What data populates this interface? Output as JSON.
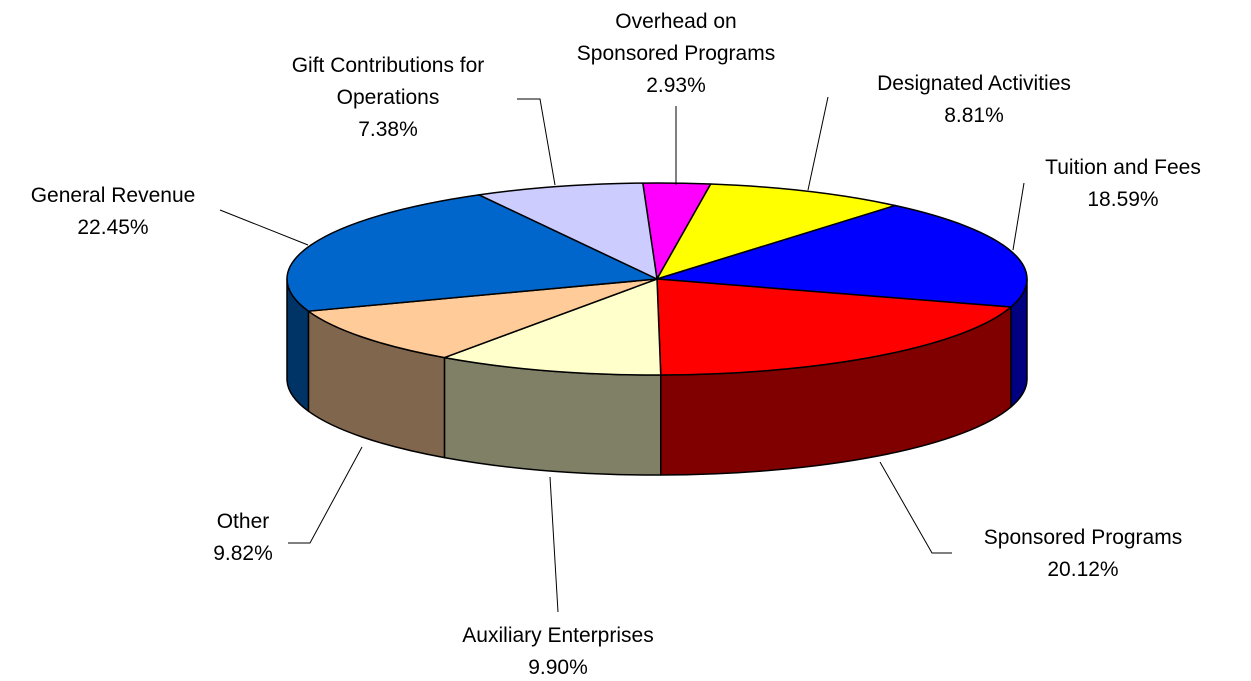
{
  "chart_data": {
    "type": "pie3d",
    "categories": [
      "Overhead on\nSponsored Programs",
      "Designated Activities",
      "Tuition and Fees",
      "Sponsored Programs",
      "Auxiliary Enterprises",
      "Other",
      "General Revenue",
      "Gift Contributions for\nOperations"
    ],
    "values": [
      2.93,
      8.81,
      18.59,
      20.12,
      9.9,
      9.82,
      22.45,
      7.38
    ],
    "value_labels": [
      "2.93%",
      "8.81%",
      "18.59%",
      "20.12%",
      "9.90%",
      "9.82%",
      "22.45%",
      "7.38%"
    ],
    "colors": [
      "#ff00ff",
      "#ffff00",
      "#0000ff",
      "#ff0000",
      "#ffffcc",
      "#ffcc99",
      "#0066cc",
      "#ccccff"
    ]
  }
}
